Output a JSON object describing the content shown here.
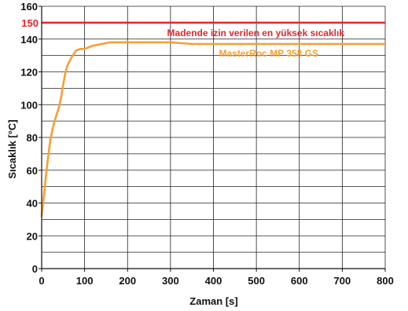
{
  "chart_data": {
    "type": "line",
    "title": "",
    "xlabel": "Zaman [s]",
    "ylabel": "Sıcaklık [°C]",
    "xlim": [
      0,
      800
    ],
    "ylim": [
      0,
      160
    ],
    "xticks": [
      0,
      100,
      200,
      300,
      400,
      500,
      600,
      700,
      800
    ],
    "yticks": [
      0,
      20,
      40,
      60,
      80,
      100,
      120,
      140,
      160
    ],
    "grid": "horizontal",
    "reference_line": {
      "value": 150,
      "label": "Madende izin verilen en yüksek sıcaklık",
      "tick_label": "150",
      "color": "#e3262d"
    },
    "series": [
      {
        "name": "MasterRoc MP 358 GS",
        "color": "#f5a031",
        "x": [
          0,
          5,
          10,
          15,
          20,
          25,
          30,
          40,
          45,
          50,
          55,
          60,
          70,
          80,
          90,
          100,
          120,
          140,
          160,
          180,
          200,
          250,
          300,
          350,
          400,
          500,
          600,
          700,
          800
        ],
        "y": [
          32,
          44,
          57,
          68,
          78,
          85,
          90,
          98,
          104,
          112,
          119,
          124,
          129,
          133,
          134,
          134,
          136,
          137,
          138,
          138,
          138,
          138,
          138,
          137,
          137,
          137,
          137,
          137,
          137
        ]
      }
    ]
  }
}
